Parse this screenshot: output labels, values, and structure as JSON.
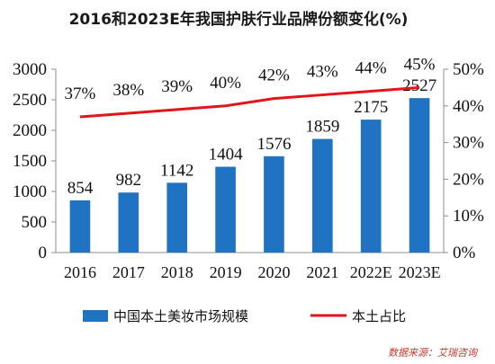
{
  "colors": {
    "bar": "#1f73c2",
    "line": "#e3151a",
    "axis": "#8c8c8c",
    "source": "#c0392b"
  },
  "chart_data": {
    "type": "bar",
    "title": "2016和2023E年我国护肤行业品牌份额变化(%)",
    "categories": [
      "2016",
      "2017",
      "2018",
      "2019",
      "2020",
      "2021",
      "2022E",
      "2023E"
    ],
    "series": [
      {
        "name": "中国本土美妆市场规模",
        "type": "bar",
        "axis": "left",
        "values": [
          854,
          982,
          1142,
          1404,
          1576,
          1859,
          2175,
          2527
        ],
        "labels": [
          "854",
          "982",
          "1142",
          "1404",
          "1576",
          "1859",
          "2175",
          "2527"
        ]
      },
      {
        "name": "本土占比",
        "type": "line",
        "axis": "right",
        "values": [
          37,
          38,
          39,
          40,
          42,
          43,
          44,
          45
        ],
        "labels": [
          "37%",
          "38%",
          "39%",
          "40%",
          "42%",
          "43%",
          "44%",
          "45%"
        ]
      }
    ],
    "y_left": {
      "min": 0,
      "max": 3000,
      "ticks": [
        "0",
        "500",
        "1000",
        "1500",
        "2000",
        "2500",
        "3000"
      ]
    },
    "y_right": {
      "min": 0,
      "max": 50,
      "ticks": [
        "0%",
        "10%",
        "20%",
        "30%",
        "40%",
        "50%"
      ]
    },
    "grid": false,
    "legend": "bottom"
  },
  "source": "数据来源：艾瑞咨询"
}
